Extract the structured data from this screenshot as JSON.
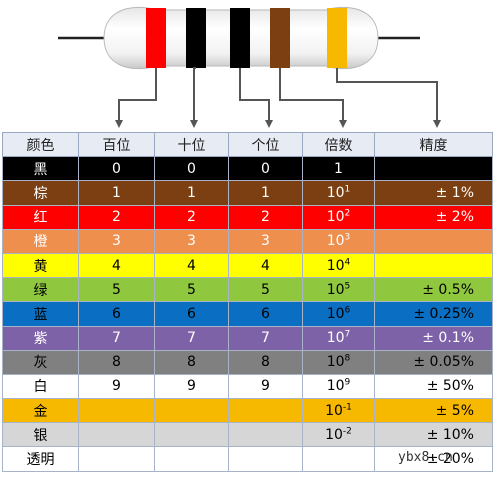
{
  "header": [
    "颜色",
    "百位",
    "十位",
    "个位",
    "倍数",
    "精度"
  ],
  "rows": [
    {
      "color_name": "黑",
      "hundreds": "0",
      "tens": "0",
      "ones": "0",
      "mult_base": "1",
      "mult_exp": "",
      "precision": "",
      "bg": "#000000",
      "fg": "#ffffff"
    },
    {
      "color_name": "棕",
      "hundreds": "1",
      "tens": "1",
      "ones": "1",
      "mult_base": "10",
      "mult_exp": "1",
      "precision": "± 1%",
      "bg": "#7b3f12",
      "fg": "#ffffff"
    },
    {
      "color_name": "红",
      "hundreds": "2",
      "tens": "2",
      "ones": "2",
      "mult_base": "10",
      "mult_exp": "2",
      "precision": "± 2%",
      "bg": "#ff0000",
      "fg": "#ffffff"
    },
    {
      "color_name": "橙",
      "hundreds": "3",
      "tens": "3",
      "ones": "3",
      "mult_base": "10",
      "mult_exp": "3",
      "precision": "",
      "bg": "#ef8f4e",
      "fg": "#ffffff"
    },
    {
      "color_name": "黄",
      "hundreds": "4",
      "tens": "4",
      "ones": "4",
      "mult_base": "10",
      "mult_exp": "4",
      "precision": "",
      "bg": "#ffff00",
      "fg": "#000000"
    },
    {
      "color_name": "绿",
      "hundreds": "5",
      "tens": "5",
      "ones": "5",
      "mult_base": "10",
      "mult_exp": "5",
      "precision": "± 0.5%",
      "bg": "#8fc83f",
      "fg": "#000000"
    },
    {
      "color_name": "蓝",
      "hundreds": "6",
      "tens": "6",
      "ones": "6",
      "mult_base": "10",
      "mult_exp": "6",
      "precision": "± 0.25%",
      "bg": "#0a6fc2",
      "fg": "#000000"
    },
    {
      "color_name": "紫",
      "hundreds": "7",
      "tens": "7",
      "ones": "7",
      "mult_base": "10",
      "mult_exp": "7",
      "precision": "± 0.1%",
      "bg": "#7e62a8",
      "fg": "#ffffff"
    },
    {
      "color_name": "灰",
      "hundreds": "8",
      "tens": "8",
      "ones": "8",
      "mult_base": "10",
      "mult_exp": "8",
      "precision": "± 0.05%",
      "bg": "#808080",
      "fg": "#000000"
    },
    {
      "color_name": "白",
      "hundreds": "9",
      "tens": "9",
      "ones": "9",
      "mult_base": "10",
      "mult_exp": "9",
      "precision": "± 50%",
      "bg": "#ffffff",
      "fg": "#000000"
    },
    {
      "color_name": "金",
      "hundreds": "",
      "tens": "",
      "ones": "",
      "mult_base": "10",
      "mult_exp": "-1",
      "precision": "± 5%",
      "bg": "#f7b900",
      "fg": "#000000"
    },
    {
      "color_name": "银",
      "hundreds": "",
      "tens": "",
      "ones": "",
      "mult_base": "10",
      "mult_exp": "-2",
      "precision": "± 10%",
      "bg": "#d6d6d6",
      "fg": "#000000"
    },
    {
      "color_name": "透明",
      "hundreds": "",
      "tens": "",
      "ones": "",
      "mult_base": "",
      "mult_exp": "",
      "precision": "± 20%",
      "bg": "#ffffff",
      "fg": "#000000"
    }
  ],
  "resistor": {
    "body_color": "#ffffff",
    "lead_color": "#222222",
    "arrow_color": "#555555",
    "bands": [
      {
        "name": "hundreds-digit",
        "color": "#ff0000"
      },
      {
        "name": "tens-digit",
        "color": "#000000"
      },
      {
        "name": "ones-digit",
        "color": "#000000"
      },
      {
        "name": "multiplier",
        "color": "#7b3f12"
      },
      {
        "name": "tolerance",
        "color": "#f7b900"
      }
    ]
  },
  "watermark": "ybx8.cn"
}
